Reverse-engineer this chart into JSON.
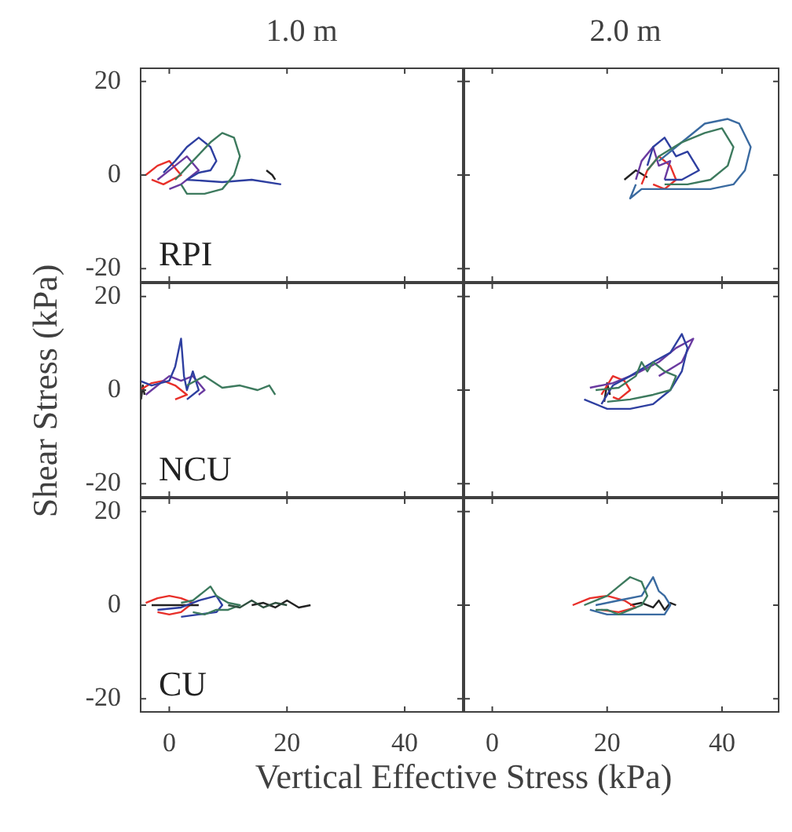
{
  "chart_data": [
    {
      "type": "line",
      "title": "1.0 m",
      "annotations": [
        "RPI"
      ],
      "xlim": [
        -5,
        50
      ],
      "ylim": [
        -23,
        23
      ],
      "xticks": [
        0,
        20,
        40
      ],
      "yticks": [
        -20,
        0,
        20
      ],
      "tick_labels": "y",
      "series": [
        {
          "color": "#3d7a5e",
          "x": [
            1,
            4,
            7,
            9,
            11,
            12,
            11,
            9,
            6,
            3,
            2
          ],
          "values": [
            -1,
            3,
            7,
            9,
            8,
            4,
            0,
            -3,
            -4,
            -4,
            -2
          ]
        },
        {
          "color": "#2e3fa0",
          "x": [
            -1,
            1,
            3,
            5,
            7,
            8,
            7,
            5,
            3,
            9,
            14,
            19
          ],
          "values": [
            0.5,
            3,
            6,
            8,
            6,
            3,
            1,
            0.5,
            -1,
            -1.5,
            -1,
            -2
          ]
        },
        {
          "color": "#6a3aa0",
          "x": [
            -2,
            1,
            3,
            5,
            2,
            0
          ],
          "values": [
            -1,
            2,
            4,
            1,
            -2,
            -3
          ]
        },
        {
          "color": "#e8302a",
          "x": [
            -4,
            -2,
            0,
            2,
            -1,
            -3
          ],
          "values": [
            0,
            2,
            3,
            0,
            -2,
            -1
          ]
        },
        {
          "color": "#222222",
          "x": [
            16.5,
            17.5,
            18
          ],
          "values": [
            1,
            0,
            -1
          ]
        }
      ]
    },
    {
      "type": "line",
      "title": "2.0 m",
      "xlim": [
        -5,
        50
      ],
      "ylim": [
        -23,
        23
      ],
      "xticks": [
        0,
        20,
        40
      ],
      "yticks": [
        -20,
        0,
        20
      ],
      "tick_labels": false,
      "series": [
        {
          "color": "#3d7a5e",
          "x": [
            27,
            29,
            33,
            37,
            40,
            42,
            41,
            38,
            34,
            30
          ],
          "values": [
            1,
            4,
            7,
            9,
            10,
            6,
            2,
            -1,
            -2,
            -2
          ]
        },
        {
          "color": "#3a6aa0",
          "x": [
            29,
            33,
            37,
            41,
            43,
            45,
            44,
            42,
            38,
            34,
            30,
            26,
            24,
            25
          ],
          "values": [
            3,
            7,
            11,
            12,
            11,
            6,
            1,
            -2,
            -3,
            -3,
            -3,
            -3,
            -5,
            -2
          ]
        },
        {
          "color": "#2e3fa0",
          "x": [
            27,
            28,
            30,
            32,
            34,
            36,
            33,
            30
          ],
          "values": [
            2,
            6,
            8,
            4,
            5,
            1,
            -1,
            -1
          ]
        },
        {
          "color": "#6a3aa0",
          "x": [
            25,
            26,
            28,
            29,
            31,
            30
          ],
          "values": [
            -1,
            3,
            6,
            2,
            3,
            -1
          ]
        },
        {
          "color": "#e8302a",
          "x": [
            26,
            27,
            29,
            31,
            32,
            30,
            28
          ],
          "values": [
            -2,
            1,
            4,
            2,
            -1,
            -3,
            -2
          ]
        },
        {
          "color": "#222222",
          "x": [
            23,
            25,
            27
          ],
          "values": [
            -1,
            1,
            -0.5
          ]
        }
      ]
    },
    {
      "type": "line",
      "ylabel": "Shear Stress (kPa)",
      "annotations": [
        "NCU"
      ],
      "xlim": [
        -5,
        50
      ],
      "ylim": [
        -23,
        23
      ],
      "xticks": [
        0,
        20,
        40
      ],
      "yticks": [
        -20,
        0,
        20
      ],
      "tick_labels": "y",
      "series": [
        {
          "color": "#3d7a5e",
          "x": [
            3,
            6,
            9,
            12,
            15,
            17,
            18
          ],
          "values": [
            1,
            3,
            0.5,
            1,
            0,
            1,
            -1
          ]
        },
        {
          "color": "#2e3fa0",
          "x": [
            -5,
            -3,
            0,
            1,
            2,
            2.5,
            3,
            4,
            5,
            3
          ],
          "values": [
            2,
            1,
            2,
            5,
            11,
            3,
            0,
            4,
            0,
            -2
          ]
        },
        {
          "color": "#6a3aa0",
          "x": [
            -4,
            -2,
            0,
            2,
            4,
            6,
            5
          ],
          "values": [
            -1,
            1,
            3,
            2,
            3,
            0,
            -1
          ]
        },
        {
          "color": "#e8302a",
          "x": [
            -5,
            -3,
            -1,
            1,
            3,
            1
          ],
          "values": [
            0,
            1.5,
            2,
            1,
            -1,
            -2
          ]
        },
        {
          "color": "#222222",
          "x": [
            -4.8,
            -4.5,
            -4.2
          ],
          "values": [
            -2,
            1,
            -1
          ]
        }
      ]
    },
    {
      "type": "line",
      "xlim": [
        -5,
        50
      ],
      "ylim": [
        -23,
        23
      ],
      "xticks": [
        0,
        20,
        40
      ],
      "yticks": [
        -20,
        0,
        20
      ],
      "tick_labels": false,
      "series": [
        {
          "color": "#3d7a5e",
          "x": [
            18,
            22,
            25,
            26,
            27,
            28,
            30,
            32,
            31,
            28,
            24,
            20
          ],
          "values": [
            0,
            0.5,
            3,
            6,
            4,
            6,
            4,
            3,
            0,
            -1,
            -2,
            -2.5
          ]
        },
        {
          "color": "#2e3fa0",
          "x": [
            16,
            20,
            24,
            28,
            31,
            33,
            34,
            33,
            31,
            28,
            24,
            21,
            19
          ],
          "values": [
            -2,
            -4,
            -4,
            -3,
            0,
            4,
            9,
            12,
            8,
            6,
            3,
            1,
            -3
          ]
        },
        {
          "color": "#6a3aa0",
          "x": [
            17,
            21,
            25,
            29,
            32,
            35,
            33,
            29
          ],
          "values": [
            0.5,
            1.5,
            3.5,
            6,
            9,
            11,
            6,
            3
          ]
        },
        {
          "color": "#e8302a",
          "x": [
            19,
            20,
            21,
            23,
            24,
            22,
            21
          ],
          "values": [
            -1,
            1,
            3,
            2,
            0,
            -2,
            -1.5
          ]
        },
        {
          "color": "#222222",
          "x": [
            19.5,
            20,
            20.5
          ],
          "values": [
            -2.5,
            1.5,
            -1
          ]
        }
      ]
    },
    {
      "type": "line",
      "xlabel": "Vertical Effective Stress (kPa)",
      "annotations": [
        "CU"
      ],
      "xlim": [
        -5,
        50
      ],
      "ylim": [
        -23,
        23
      ],
      "xticks": [
        0,
        20,
        40
      ],
      "yticks": [
        -20,
        0,
        20
      ],
      "series": [
        {
          "color": "#2f4f3f",
          "x": [
            10,
            12,
            14,
            16,
            18,
            20
          ],
          "values": [
            0,
            -0.5,
            1,
            -0.5,
            0.5,
            0
          ]
        },
        {
          "color": "#3d7a5e",
          "x": [
            2,
            4,
            6,
            7,
            8,
            10,
            12,
            10,
            8,
            6,
            4
          ],
          "values": [
            0.5,
            1,
            3,
            4,
            2,
            0.5,
            0,
            -1,
            -1,
            -2,
            -1.5
          ]
        },
        {
          "color": "#2e3fa0",
          "x": [
            -2,
            2,
            5,
            8,
            9,
            8,
            5,
            2
          ],
          "values": [
            -1,
            -0.5,
            1,
            2,
            0,
            -1.5,
            -2,
            -2.5
          ]
        },
        {
          "color": "#222222",
          "x": [
            -3,
            -1,
            1,
            3,
            5
          ],
          "values": [
            0,
            0,
            0,
            0,
            0
          ]
        },
        {
          "color": "#e8302a",
          "x": [
            -4,
            -2,
            0,
            2,
            4,
            2,
            0,
            -2
          ],
          "values": [
            0.5,
            1.5,
            2,
            1.5,
            0.5,
            -1.5,
            -2,
            -1.5
          ]
        },
        {
          "color": "#222222",
          "x": [
            14,
            16,
            18,
            20,
            22,
            24
          ],
          "values": [
            0,
            0.5,
            -0.5,
            1,
            -0.5,
            0
          ]
        }
      ]
    },
    {
      "type": "line",
      "xlim": [
        -5,
        50
      ],
      "ylim": [
        -23,
        23
      ],
      "xticks": [
        0,
        20,
        40
      ],
      "yticks": [
        -20,
        0,
        20
      ],
      "tick_labels": "x",
      "series": [
        {
          "color": "#3d7a5e",
          "x": [
            16,
            20,
            22,
            24,
            26,
            27,
            26,
            24,
            22,
            20,
            18
          ],
          "values": [
            0,
            2,
            4,
            6,
            5,
            2,
            0,
            -1,
            -2,
            -1,
            -1
          ]
        },
        {
          "color": "#3a6aa0",
          "x": [
            18,
            22,
            26,
            28,
            29,
            30,
            31,
            30,
            28,
            24,
            20,
            17
          ],
          "values": [
            0,
            1,
            2,
            6,
            3,
            2,
            0,
            -2,
            -2,
            -2,
            -2,
            -1
          ]
        },
        {
          "color": "#e8302a",
          "x": [
            14,
            17,
            20,
            23,
            25,
            22,
            19
          ],
          "values": [
            0,
            1.5,
            2,
            1,
            -0.5,
            -1.5,
            -1
          ]
        },
        {
          "color": "#222222",
          "x": [
            24,
            26,
            28,
            29,
            30,
            31,
            32
          ],
          "values": [
            0,
            0.5,
            -0.5,
            1,
            -1,
            0.5,
            0
          ]
        }
      ]
    }
  ]
}
